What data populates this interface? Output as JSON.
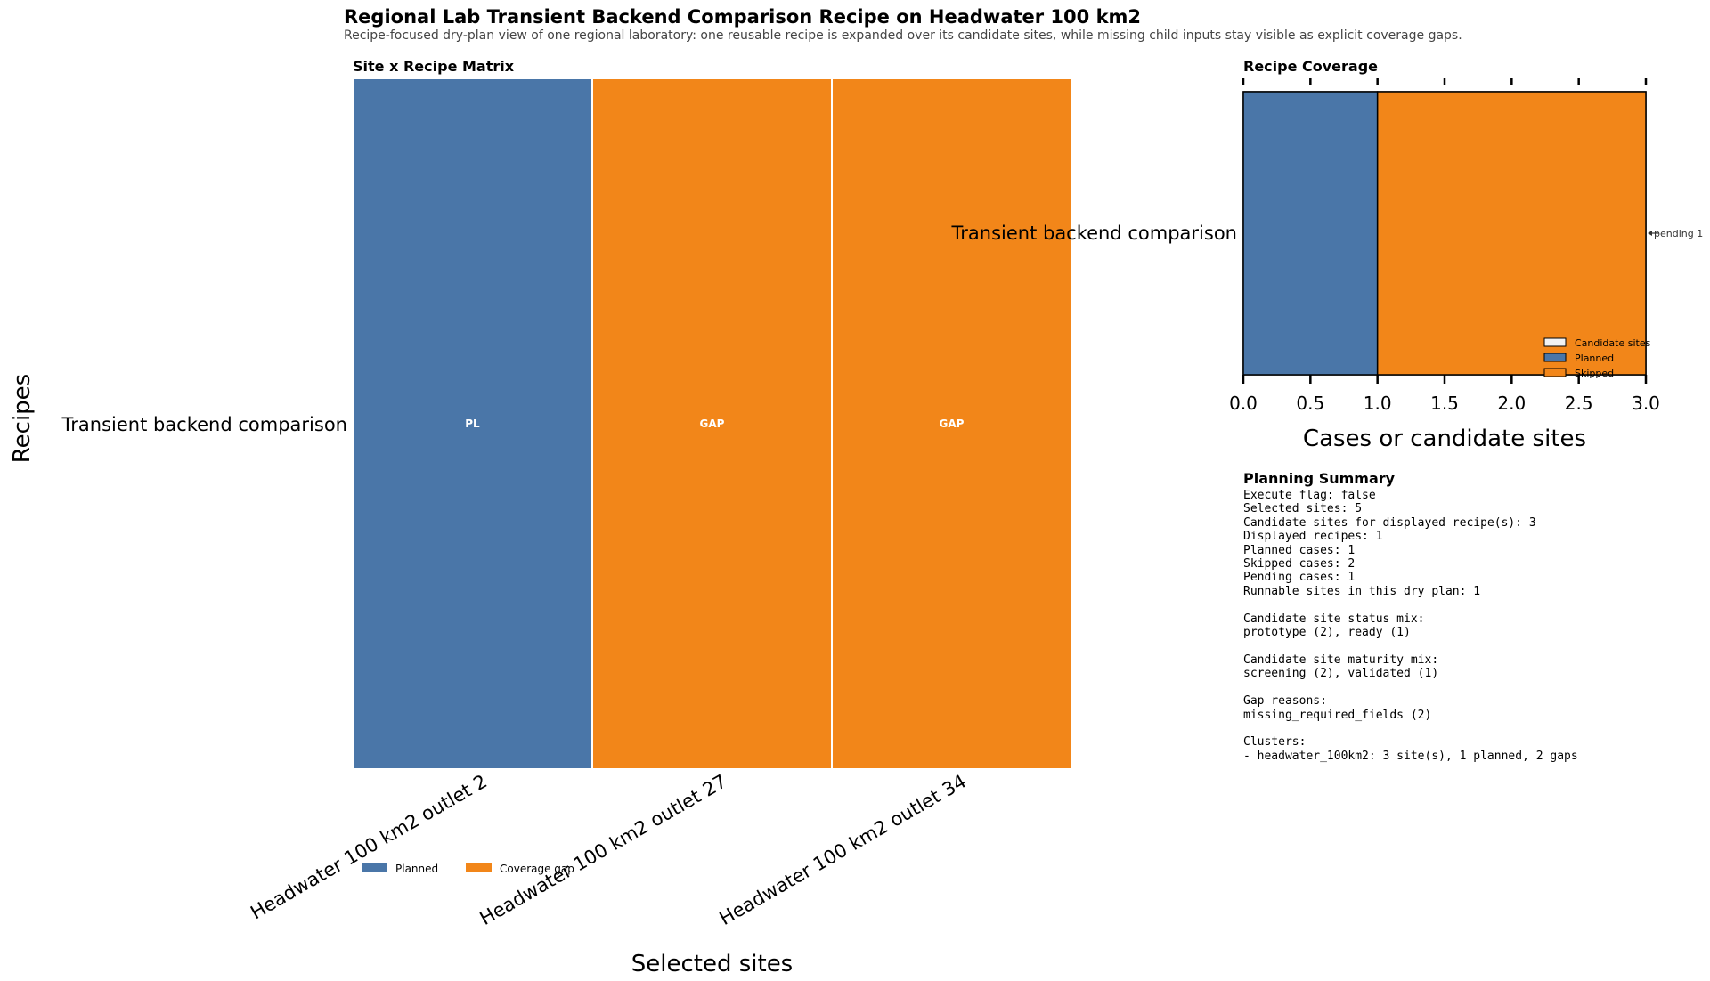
{
  "title": "Regional Lab Transient Backend Comparison Recipe on Headwater 100 km2",
  "subtitle": "Recipe-focused dry-plan view of one regional laboratory: one reusable recipe is expanded over its candidate sites, while missing child inputs stay visible as explicit coverage gaps.",
  "colors": {
    "planned": "#4a76a8",
    "gap": "#f28619",
    "candidate": "#f2f2f2",
    "edge": "#000000"
  },
  "chart_data": [
    {
      "type": "heatmap",
      "title": "Site x Recipe Matrix",
      "xlabel": "Selected sites",
      "ylabel": "Recipes",
      "x": [
        "Headwater 100 km2 outlet 2",
        "Headwater 100 km2 outlet 27",
        "Headwater 100 km2 outlet 34"
      ],
      "y": [
        "Transient backend comparison"
      ],
      "cells": [
        {
          "site": "Headwater 100 km2 outlet 2",
          "recipe": "Transient backend comparison",
          "status": "planned",
          "label": "PL"
        },
        {
          "site": "Headwater 100 km2 outlet 27",
          "recipe": "Transient backend comparison",
          "status": "gap",
          "label": "GAP"
        },
        {
          "site": "Headwater 100 km2 outlet 34",
          "recipe": "Transient backend comparison",
          "status": "gap",
          "label": "GAP"
        }
      ],
      "legend": {
        "placement": "bottom-left",
        "entries": [
          {
            "name": "Planned",
            "status": "planned"
          },
          {
            "name": "Coverage gap",
            "status": "gap"
          }
        ]
      }
    },
    {
      "type": "bar",
      "orientation": "horizontal",
      "title": "Recipe Coverage",
      "xlabel": "Cases or candidate sites",
      "categories": [
        "Transient backend comparison"
      ],
      "series": [
        {
          "name": "Candidate sites",
          "values": [
            3
          ]
        },
        {
          "name": "Planned",
          "values": [
            1
          ]
        },
        {
          "name": "Skipped",
          "values": [
            2
          ]
        }
      ],
      "xlim": [
        0,
        3
      ],
      "xticks": [
        "0.0",
        "0.5",
        "1.0",
        "1.5",
        "2.0",
        "2.5",
        "3.0"
      ],
      "annotation": {
        "text": "pending 1",
        "value": 3
      },
      "legend": {
        "placement": "bottom-right",
        "entries": [
          "Candidate sites",
          "Planned",
          "Skipped"
        ]
      }
    }
  ],
  "summary": {
    "title": "Planning Summary",
    "lines": [
      "Execute flag: false",
      "Selected sites: 5",
      "Candidate sites for displayed recipe(s): 3",
      "Displayed recipes: 1",
      "Planned cases: 1",
      "Skipped cases: 2",
      "Pending cases: 1",
      "Runnable sites in this dry plan: 1",
      "",
      "Candidate site status mix:",
      "prototype (2), ready (1)",
      "",
      "Candidate site maturity mix:",
      "screening (2), validated (1)",
      "",
      "Gap reasons:",
      "missing_required_fields (2)",
      "",
      "Clusters:",
      "- headwater_100km2: 3 site(s), 1 planned, 2 gaps"
    ]
  }
}
